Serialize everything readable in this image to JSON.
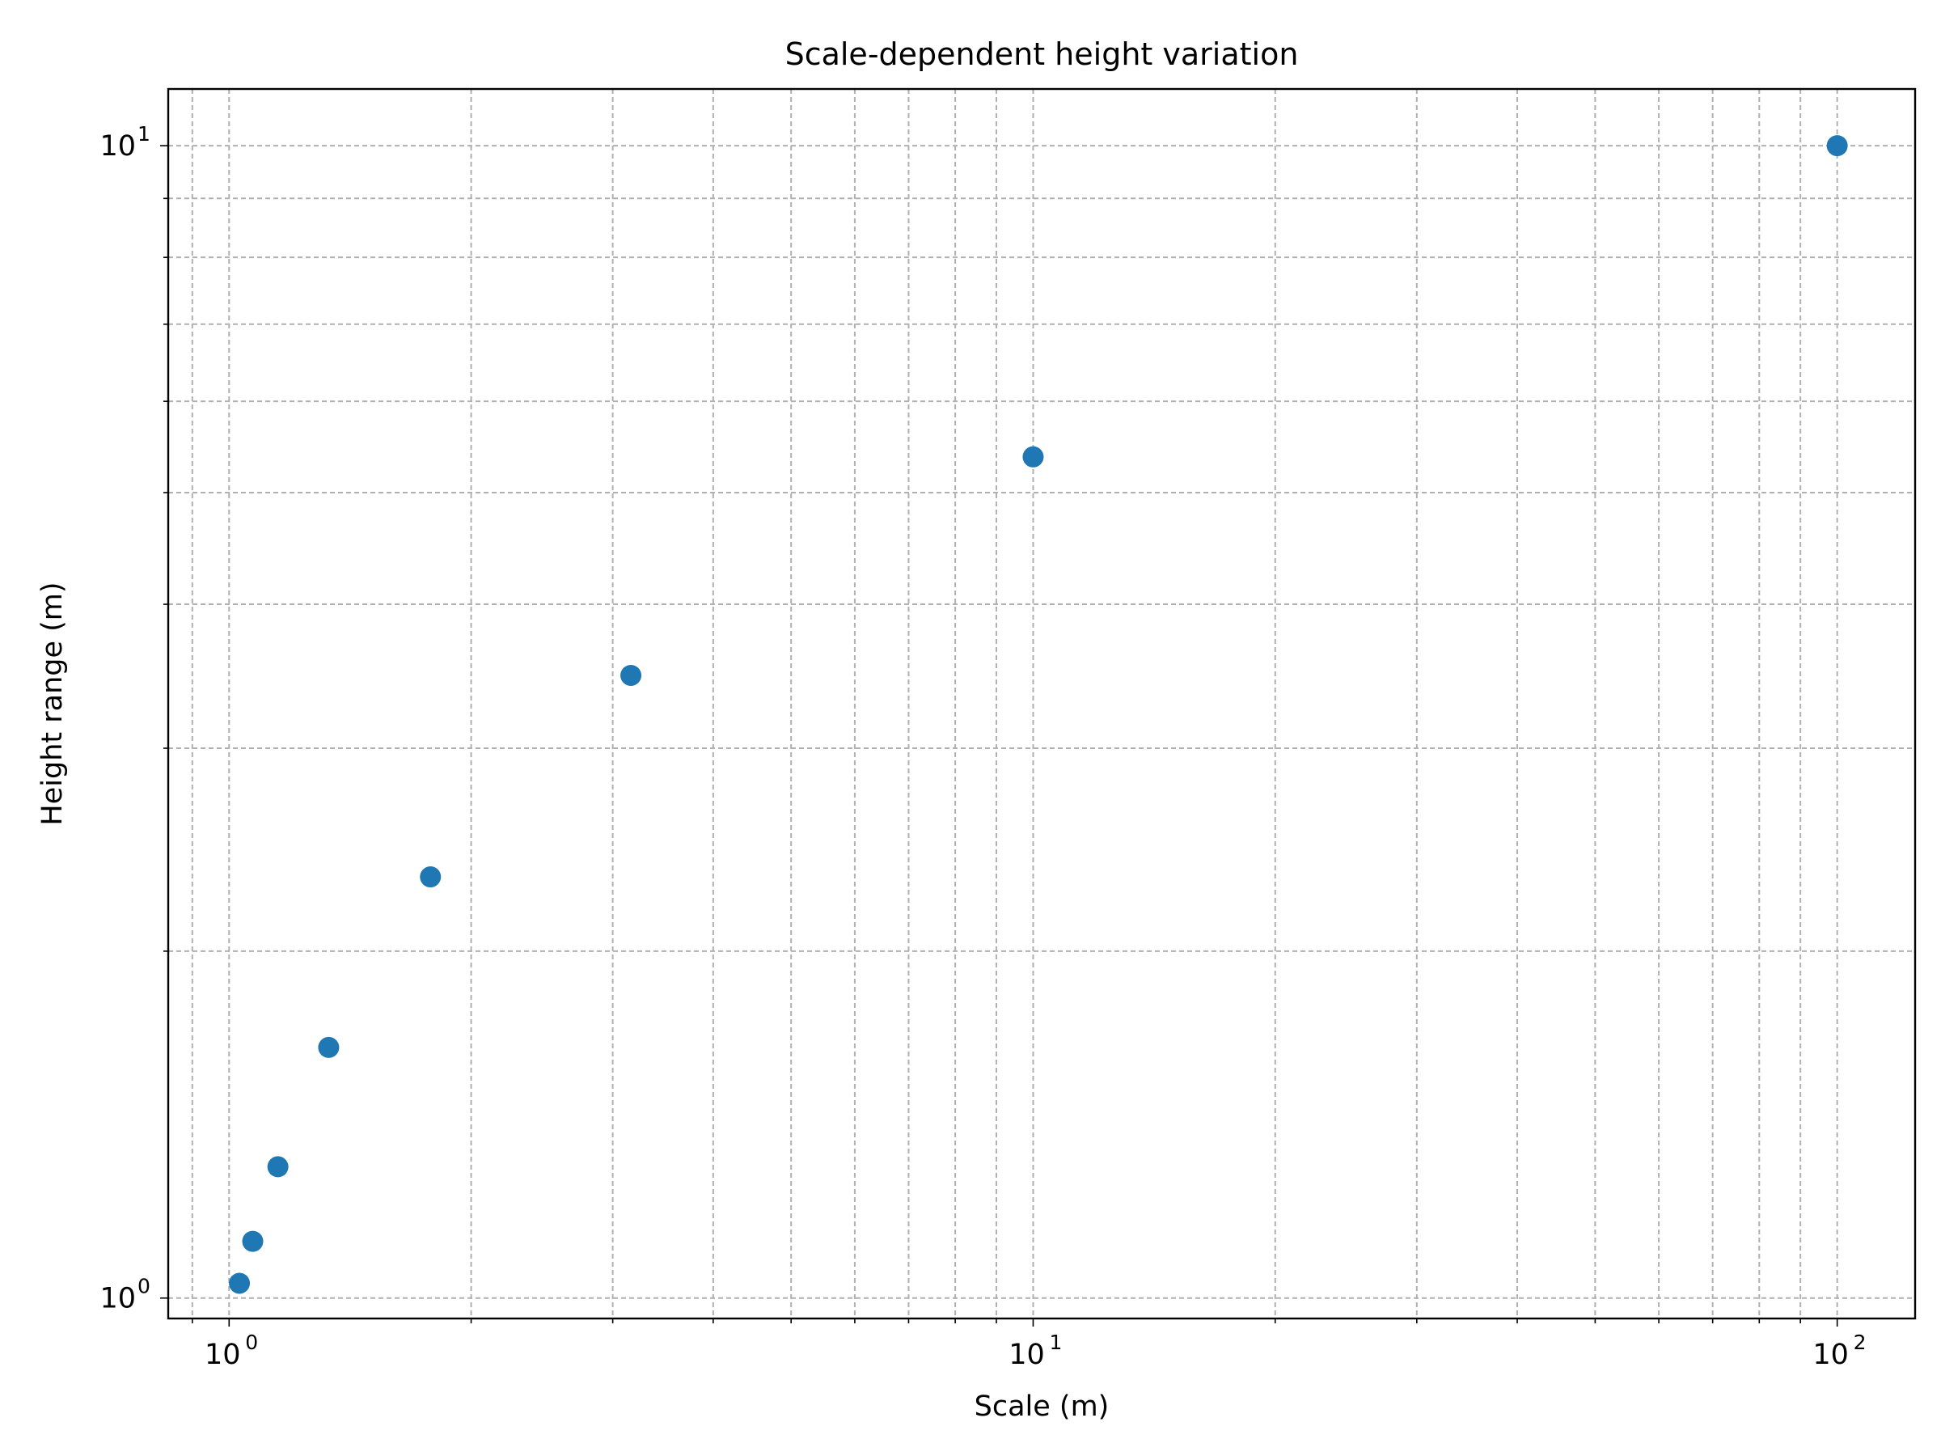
{
  "chart_data": {
    "type": "scatter",
    "title": "Scale-dependent height variation",
    "xlabel": "Scale (m)",
    "ylabel": "Height range (m)",
    "xscale": "log",
    "yscale": "log",
    "xlim": [
      0.84,
      125
    ],
    "ylim": [
      0.96,
      11.2
    ],
    "grid": true,
    "legend": "none",
    "x_ticks": [
      {
        "base": "10",
        "exp": "0",
        "value": 1
      },
      {
        "base": "10",
        "exp": "1",
        "value": 10
      },
      {
        "base": "10",
        "exp": "2",
        "value": 100
      }
    ],
    "y_ticks": [
      {
        "base": "10",
        "exp": "0",
        "value": 1
      },
      {
        "base": "10",
        "exp": "1",
        "value": 10
      }
    ],
    "series": [
      {
        "color": "#1f77b4",
        "x": [
          1.03,
          1.07,
          1.15,
          1.33,
          1.78,
          3.16,
          10,
          100
        ],
        "y": [
          1.03,
          1.12,
          1.3,
          1.65,
          2.32,
          3.47,
          5.37,
          10.0
        ]
      }
    ]
  }
}
